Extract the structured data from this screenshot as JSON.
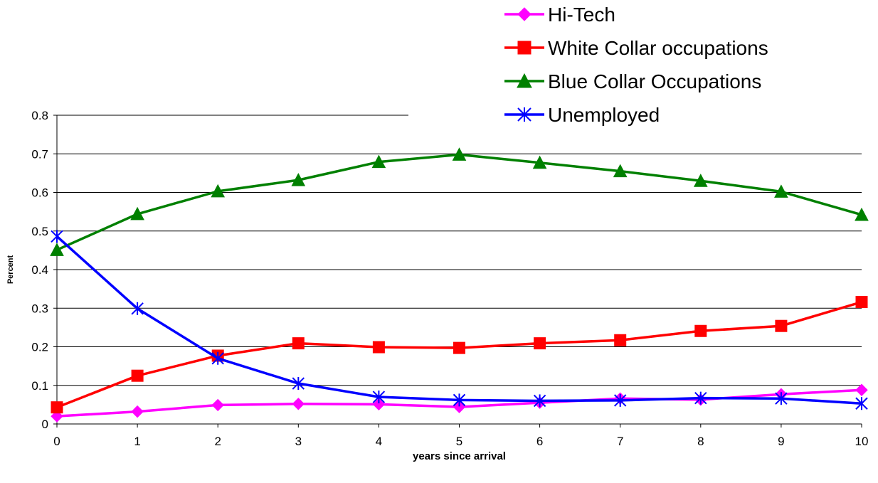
{
  "chart_data": {
    "type": "line",
    "title": "",
    "xlabel": "years since arrival",
    "ylabel": "Percent",
    "x": [
      0,
      1,
      2,
      3,
      4,
      5,
      6,
      7,
      8,
      9,
      10
    ],
    "xlim": [
      0,
      10
    ],
    "ylim": [
      0,
      0.8
    ],
    "y_ticks": [
      "0",
      "0.1",
      "0.2",
      "0.3",
      "0.4",
      "0.5",
      "0.6",
      "0.7",
      "0.8"
    ],
    "x_ticks": [
      "0",
      "1",
      "2",
      "3",
      "4",
      "5",
      "6",
      "7",
      "8",
      "9",
      "10"
    ],
    "grid": "horizontal",
    "legend_position": "top-right",
    "series": [
      {
        "name": "Hi-Tech",
        "color": "#ff00ff",
        "marker": "diamond",
        "values": [
          0.02,
          0.032,
          0.049,
          0.052,
          0.051,
          0.044,
          0.055,
          0.066,
          0.063,
          0.077,
          0.088
        ]
      },
      {
        "name": "White Collar occupations",
        "color": "#ff0000",
        "marker": "square",
        "values": [
          0.043,
          0.125,
          0.177,
          0.209,
          0.199,
          0.197,
          0.209,
          0.217,
          0.241,
          0.254,
          0.316
        ]
      },
      {
        "name": "Blue Collar Occupations",
        "color": "#008000",
        "marker": "triangle",
        "values": [
          0.451,
          0.544,
          0.603,
          0.632,
          0.679,
          0.698,
          0.677,
          0.655,
          0.63,
          0.602,
          0.542
        ]
      },
      {
        "name": "Unemployed",
        "color": "#0000ff",
        "marker": "star",
        "values": [
          0.486,
          0.299,
          0.17,
          0.105,
          0.07,
          0.062,
          0.06,
          0.061,
          0.067,
          0.066,
          0.053
        ]
      }
    ]
  }
}
